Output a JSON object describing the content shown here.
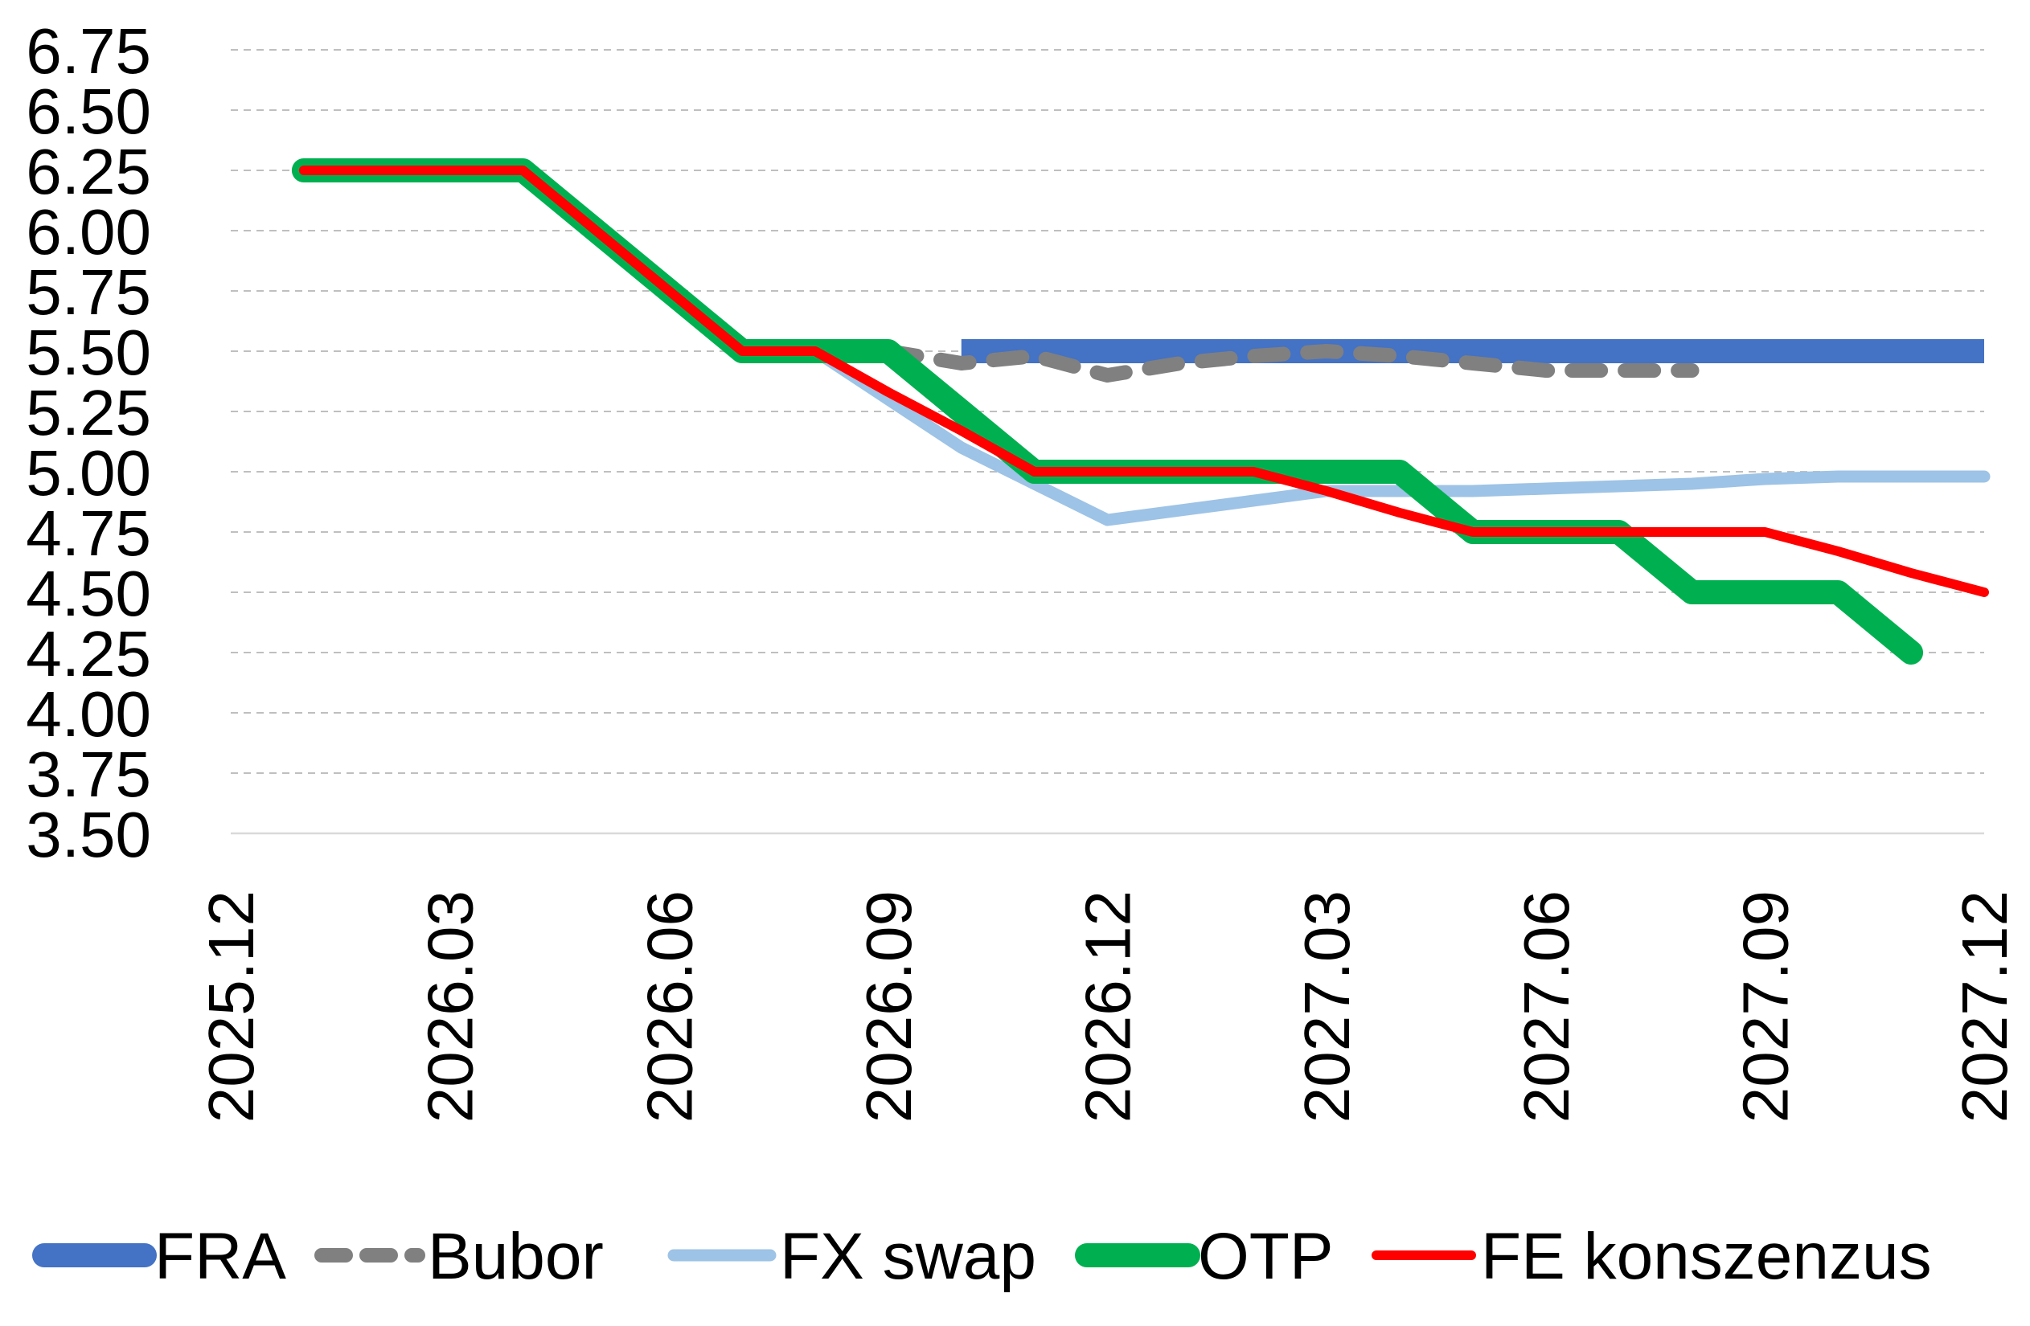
{
  "chart_data": {
    "type": "line",
    "title": "",
    "xlabel": "",
    "ylabel": "",
    "ylim": [
      3.5,
      6.75
    ],
    "yticks": [
      3.5,
      3.75,
      4.0,
      4.25,
      4.5,
      4.75,
      5.0,
      5.25,
      5.5,
      5.75,
      6.0,
      6.25,
      6.5,
      6.75
    ],
    "ytick_labels": [
      "3.50",
      "3.75",
      "4.00",
      "4.25",
      "4.50",
      "4.75",
      "5.00",
      "5.25",
      "5.50",
      "5.75",
      "6.00",
      "6.25",
      "6.50",
      "6.75"
    ],
    "x": [
      "2025.12",
      "2026.01",
      "2026.02",
      "2026.03",
      "2026.04",
      "2026.05",
      "2026.06",
      "2026.07",
      "2026.08",
      "2026.09",
      "2026.10",
      "2026.11",
      "2026.12",
      "2027.01",
      "2027.02",
      "2027.03",
      "2027.04",
      "2027.05",
      "2027.06",
      "2027.07",
      "2027.08",
      "2027.09",
      "2027.10",
      "2027.11",
      "2027.12"
    ],
    "xtick_labels": [
      "2025.12",
      "2026.03",
      "2026.06",
      "2026.09",
      "2026.12",
      "2027.03",
      "2027.06",
      "2027.09",
      "2027.12"
    ],
    "grid": true,
    "legend_position": "bottom",
    "series": [
      {
        "name": "FRA",
        "color": "#4472C4",
        "style": "solid-thick",
        "values": [
          null,
          null,
          null,
          null,
          null,
          null,
          null,
          null,
          null,
          null,
          5.5,
          5.5,
          5.5,
          5.5,
          5.5,
          5.5,
          5.5,
          5.5,
          5.5,
          5.5,
          5.5,
          5.5,
          5.5,
          5.5,
          5.5
        ]
      },
      {
        "name": "Bubor",
        "color": "#808080",
        "style": "dashed",
        "values": [
          null,
          null,
          null,
          null,
          null,
          null,
          null,
          null,
          null,
          5.5,
          5.45,
          5.48,
          5.4,
          5.45,
          5.48,
          5.5,
          5.48,
          5.45,
          5.42,
          5.42,
          5.42,
          null,
          null,
          null,
          null
        ]
      },
      {
        "name": "FX swap",
        "color": "#9DC3E6",
        "style": "solid",
        "values": [
          null,
          null,
          null,
          null,
          null,
          null,
          null,
          null,
          5.5,
          5.3,
          5.1,
          4.95,
          4.8,
          4.84,
          4.88,
          4.92,
          4.92,
          4.92,
          4.93,
          4.94,
          4.95,
          4.97,
          4.98,
          4.98,
          4.98
        ]
      },
      {
        "name": "OTP",
        "color": "#00B050",
        "style": "solid-thick",
        "values": [
          null,
          6.25,
          6.25,
          6.25,
          6.25,
          6.0,
          5.75,
          5.5,
          5.5,
          5.5,
          5.25,
          5.0,
          5.0,
          5.0,
          5.0,
          5.0,
          5.0,
          4.75,
          4.75,
          4.75,
          4.5,
          4.5,
          4.5,
          4.25,
          null
        ]
      },
      {
        "name": "FE konszenzus",
        "color": "#FF0000",
        "style": "solid",
        "values": [
          null,
          6.25,
          6.25,
          6.25,
          6.25,
          6.0,
          5.75,
          5.5,
          5.5,
          5.33,
          5.17,
          5.0,
          5.0,
          5.0,
          5.0,
          4.92,
          4.83,
          4.75,
          4.75,
          4.75,
          4.75,
          4.75,
          4.67,
          4.58,
          4.5
        ]
      }
    ]
  }
}
